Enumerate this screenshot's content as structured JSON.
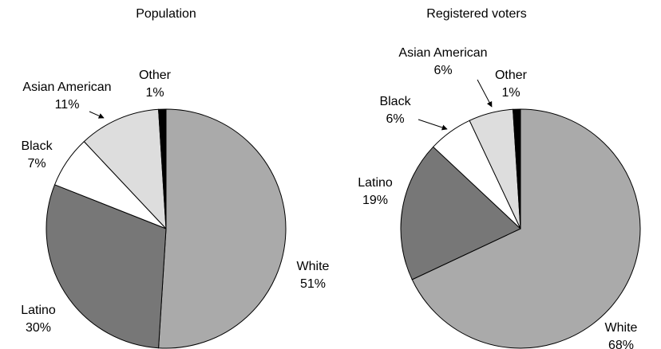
{
  "chart_data": [
    {
      "type": "pie",
      "title": "Population",
      "categories": [
        "White",
        "Latino",
        "Black",
        "Asian American",
        "Other"
      ],
      "values": [
        51,
        30,
        7,
        11,
        1
      ],
      "value_labels": [
        "51%",
        "30%",
        "7%",
        "11%",
        "1%"
      ],
      "colors": [
        "#aaaaaa",
        "#777777",
        "#ffffff",
        "#dddddd",
        "#000000"
      ]
    },
    {
      "type": "pie",
      "title": "Registered voters",
      "categories": [
        "White",
        "Latino",
        "Black",
        "Asian American",
        "Other"
      ],
      "values": [
        68,
        19,
        6,
        6,
        1
      ],
      "value_labels": [
        "68%",
        "19%",
        "6%",
        "6%",
        "1%"
      ],
      "colors": [
        "#aaaaaa",
        "#777777",
        "#ffffff",
        "#dddddd",
        "#000000"
      ]
    }
  ]
}
